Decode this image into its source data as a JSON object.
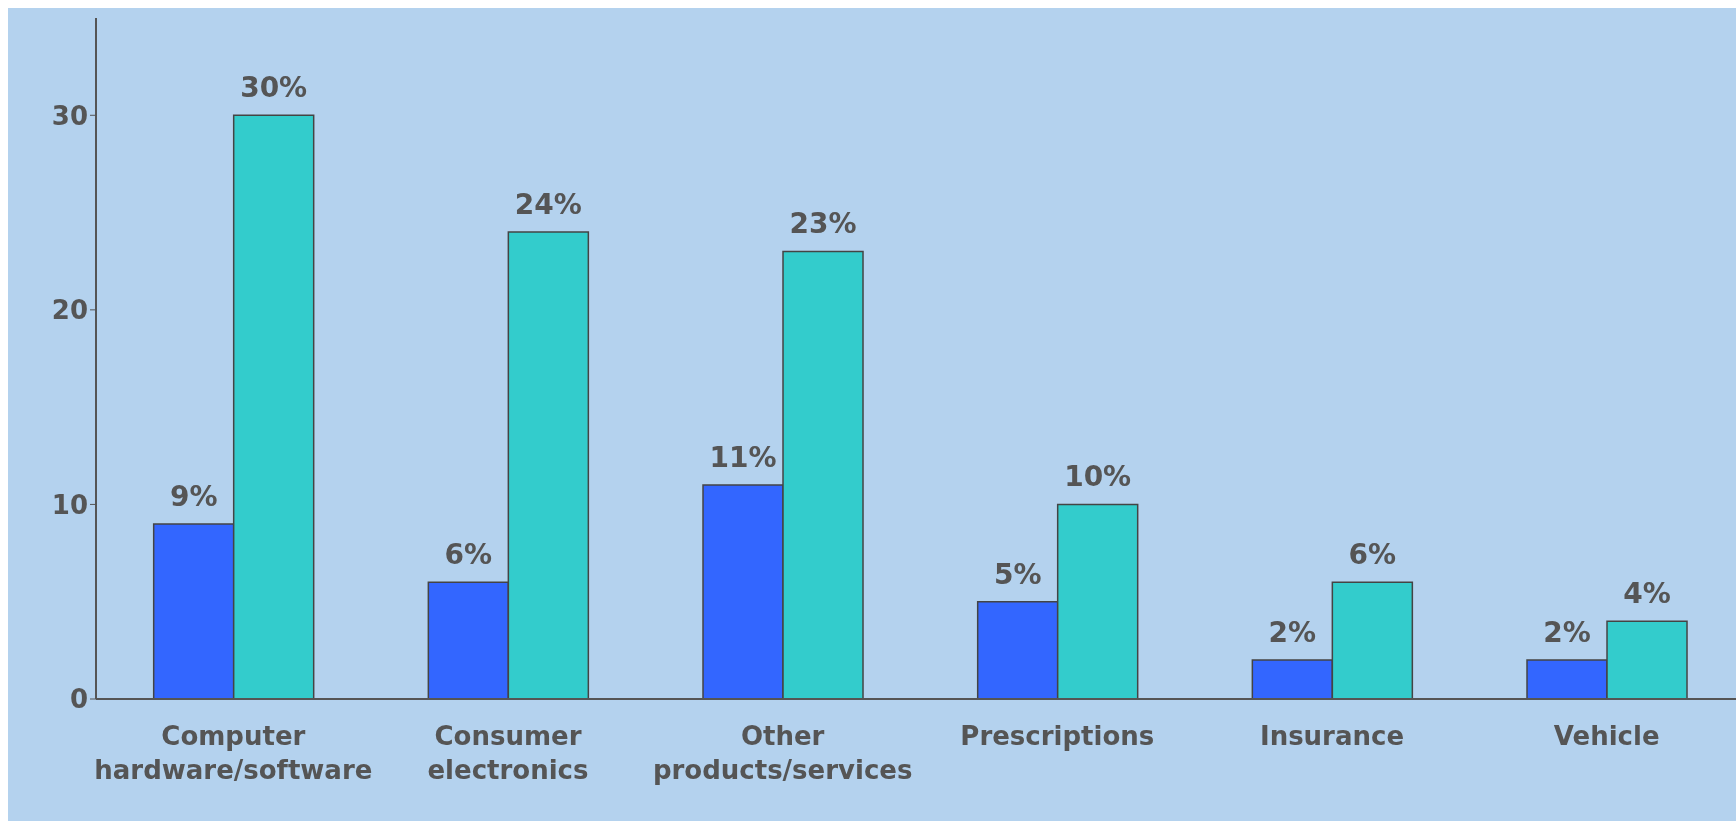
{
  "chart_data": {
    "type": "bar",
    "categories": [
      "Computer hardware/software",
      "Consumer electronics",
      "Other products/services",
      "Prescriptions",
      "Insurance",
      "Vehicle"
    ],
    "series": [
      {
        "color": "#3366ff",
        "values": [
          9,
          6,
          11,
          5,
          2,
          2
        ],
        "value_labels": [
          "9%",
          "6%",
          "11%",
          "5%",
          "2%",
          "2%"
        ]
      },
      {
        "color": "#33cccc",
        "values": [
          30,
          24,
          23,
          10,
          6,
          4
        ],
        "value_labels": [
          "30%",
          "24%",
          "23%",
          "10%",
          "6%",
          "4%"
        ]
      }
    ],
    "ylim": [
      0,
      35
    ],
    "yticks": [
      0,
      10,
      20,
      30
    ],
    "grid": false,
    "legend": false
  }
}
